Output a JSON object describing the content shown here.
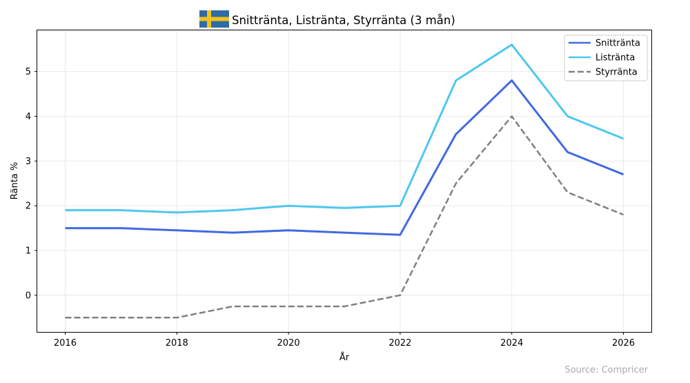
{
  "chart_data": {
    "type": "line",
    "title": "Snittränta, Listränta, Styrränta (3 mån)",
    "xlabel": "År",
    "ylabel": "Ränta %",
    "source_text": "Source: Compricer",
    "flag_icon": "sweden-flag-icon",
    "colors": {
      "flag_blue": "#2e6ca3",
      "flag_yellow": "#f4c21c"
    },
    "x": [
      2016,
      2017,
      2018,
      2019,
      2020,
      2021,
      2022,
      2023,
      2024,
      2025,
      2026
    ],
    "xticks": [
      2016,
      2018,
      2020,
      2022,
      2024,
      2026
    ],
    "yticks": [
      0,
      1,
      2,
      3,
      4,
      5
    ],
    "xlim": [
      2015.5,
      2026.5
    ],
    "ylim": [
      -0.82,
      5.92
    ],
    "grid": true,
    "legend_position": "top-right",
    "series": [
      {
        "name": "Snittränta",
        "color": "#4169e1",
        "dashed": false,
        "values": [
          1.5,
          1.5,
          1.45,
          1.4,
          1.45,
          1.4,
          1.35,
          3.6,
          4.8,
          3.2,
          2.7
        ]
      },
      {
        "name": "Listränta",
        "color": "#4dc8ee",
        "dashed": false,
        "values": [
          1.9,
          1.9,
          1.85,
          1.9,
          2.0,
          1.95,
          2.0,
          4.8,
          5.6,
          4.0,
          3.5
        ]
      },
      {
        "name": "Styrränta",
        "color": "#808080",
        "dashed": true,
        "values": [
          -0.5,
          -0.5,
          -0.5,
          -0.25,
          -0.25,
          -0.25,
          0.0,
          2.5,
          4.0,
          2.3,
          1.8
        ]
      }
    ]
  }
}
